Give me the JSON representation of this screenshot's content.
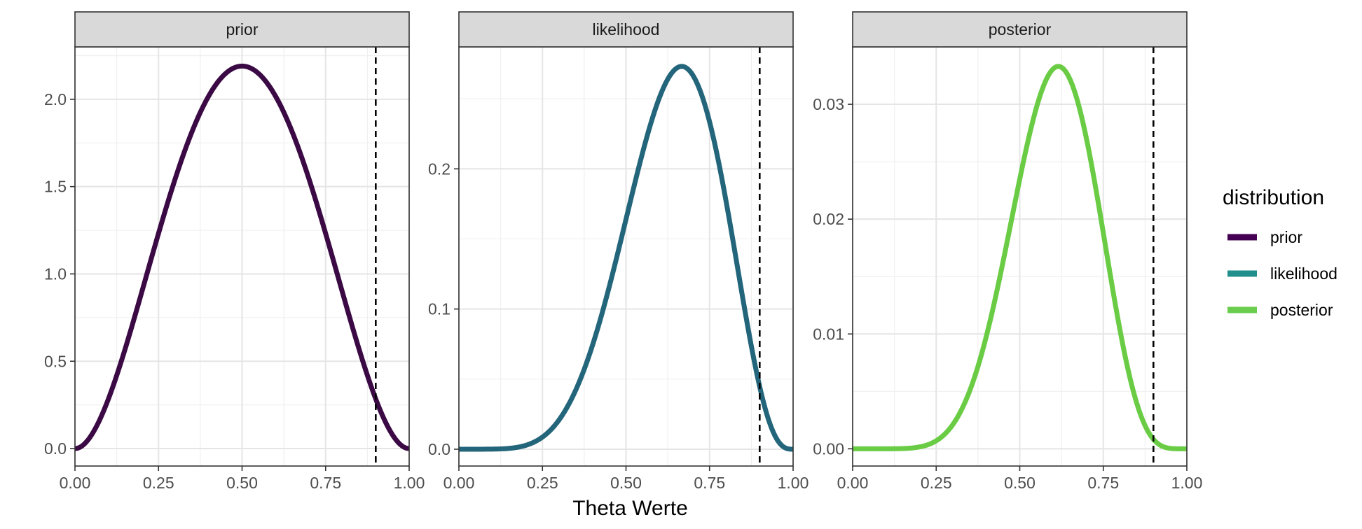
{
  "chart_data": {
    "type": "line",
    "xlabel": "Theta Werte",
    "ylabel": "",
    "reference_line": {
      "x": 0.9,
      "style": "dashed",
      "color": "#000000"
    },
    "grid": true,
    "legend": {
      "title": "distribution",
      "placement": "right",
      "entries": [
        {
          "label": "prior",
          "color": "#440154"
        },
        {
          "label": "likelihood",
          "color": "#21908C"
        },
        {
          "label": "posterior",
          "color": "#6ACD4E"
        }
      ]
    },
    "panels": [
      {
        "name": "prior",
        "strip": "prior",
        "color": "#3B0A45",
        "xlim": [
          0,
          1
        ],
        "ylim": [
          -0.1,
          2.3
        ],
        "x_ticks": [
          0,
          0.25,
          0.5,
          0.75,
          1
        ],
        "x_tick_labels": [
          "0.00",
          "0.25",
          "0.50",
          "0.75",
          "1.00"
        ],
        "y_ticks": [
          0,
          0.5,
          1,
          1.5,
          2
        ],
        "y_tick_labels": [
          "0.0",
          "0.5",
          "1.0",
          "1.5",
          "2.0"
        ],
        "y_peak": 2.19,
        "curve": {
          "family": "beta",
          "alpha": 3,
          "beta": 3,
          "peak_x": 0.5
        }
      },
      {
        "name": "likelihood",
        "strip": "likelihood",
        "color": "#23657A",
        "xlim": [
          0,
          1
        ],
        "ylim": [
          -0.012,
          0.287
        ],
        "x_ticks": [
          0,
          0.25,
          0.5,
          0.75,
          1
        ],
        "x_tick_labels": [
          "0.00",
          "0.25",
          "0.50",
          "0.75",
          "1.00"
        ],
        "y_ticks": [
          0,
          0.1,
          0.2
        ],
        "y_tick_labels": [
          "0.0",
          "0.1",
          "0.2"
        ],
        "y_peak": 0.2731,
        "curve": {
          "family": "binomial",
          "successes": 6,
          "trials": 9,
          "peak_x": 0.667
        }
      },
      {
        "name": "posterior",
        "strip": "posterior",
        "color": "#6ACC44",
        "xlim": [
          0,
          1
        ],
        "ylim": [
          -0.0015,
          0.035
        ],
        "x_ticks": [
          0,
          0.25,
          0.5,
          0.75,
          1
        ],
        "x_tick_labels": [
          "0.00",
          "0.25",
          "0.50",
          "0.75",
          "1.00"
        ],
        "y_ticks": [
          0,
          0.01,
          0.02,
          0.03
        ],
        "y_tick_labels": [
          "0.00",
          "0.01",
          "0.02",
          "0.03"
        ],
        "y_peak": 0.0333,
        "curve": {
          "family": "beta",
          "alpha": 9,
          "beta": 6,
          "peak_x": 0.6
        }
      }
    ]
  }
}
